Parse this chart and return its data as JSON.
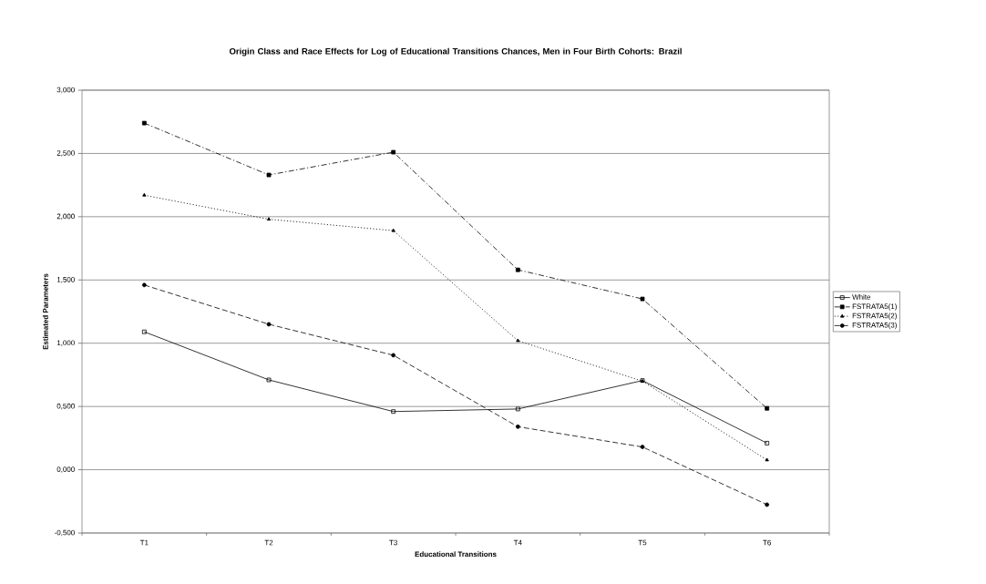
{
  "chart_data": {
    "type": "line",
    "title": "Origin Class and Race Effects for Log of Educational Transitions Chances, Men in Four Birth Cohorts: Brazil",
    "xlabel": "Educational Transitions",
    "ylabel": "Estimated Parameters",
    "categories": [
      "T1",
      "T2",
      "T3",
      "T4",
      "T5",
      "T6"
    ],
    "series": [
      {
        "name": "White",
        "color": "#000000",
        "marker": "square-open",
        "line_style": "solid",
        "values": [
          1.09,
          0.71,
          0.46,
          0.48,
          0.705,
          0.21
        ]
      },
      {
        "name": "FSTRATA5(1)",
        "color": "#000000",
        "marker": "square",
        "line_style": "dashdot",
        "values": [
          2.74,
          2.33,
          2.51,
          1.58,
          1.35,
          0.485
        ]
      },
      {
        "name": "FSTRATA5(2)",
        "color": "#000000",
        "marker": "triangle",
        "line_style": "dotted",
        "values": [
          2.17,
          1.98,
          1.89,
          1.02,
          0.7,
          0.077
        ]
      },
      {
        "name": "FSTRATA5(3)",
        "color": "#000000",
        "marker": "circle",
        "line_style": "dashed",
        "values": [
          1.46,
          1.15,
          0.905,
          0.34,
          0.18,
          -0.276
        ]
      }
    ],
    "ylim": [
      -0.5,
      3
    ],
    "yticks": [
      {
        "value": -0.5,
        "label": "-0,500"
      },
      {
        "value": 0,
        "label": "0,000"
      },
      {
        "value": 0.5,
        "label": "0,500"
      },
      {
        "value": 1,
        "label": "1,000"
      },
      {
        "value": 1.5,
        "label": "1,500"
      },
      {
        "value": 2,
        "label": "2,000"
      },
      {
        "value": 2.5,
        "label": "2,500"
      },
      {
        "value": 3,
        "label": "3,000"
      }
    ],
    "grid": "y",
    "legend": "right"
  }
}
